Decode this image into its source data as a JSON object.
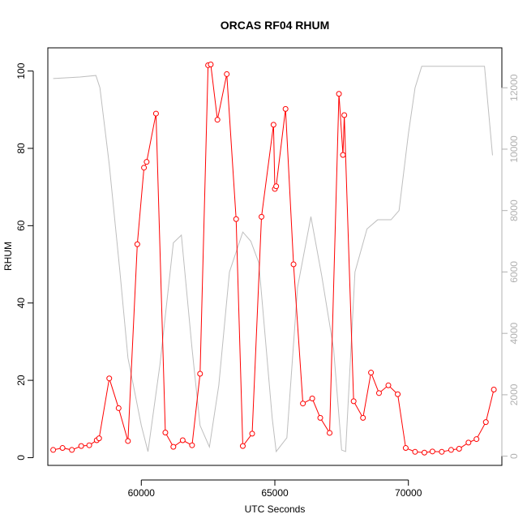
{
  "chart_data": {
    "type": "line",
    "title": "ORCAS RF04 RHUM",
    "xlabel": "UTC Seconds",
    "ylabel": "RHUM",
    "xlim": [
      56500,
      73500
    ],
    "ylim": [
      -2,
      106
    ],
    "y2lim": [
      -300,
      13300
    ],
    "x_ticks": [
      60000,
      65000,
      70000
    ],
    "y_ticks": [
      0,
      20,
      40,
      60,
      80,
      100
    ],
    "y2_ticks": [
      0,
      2000,
      4000,
      6000,
      8000,
      10000,
      12000
    ],
    "colors": {
      "rhum": "#ff0000",
      "secondary": "#bebebe",
      "axis": "#000000",
      "axis_right": "#b0b0b0"
    },
    "series": [
      {
        "axis": "left",
        "style": "line+points",
        "x": [
          56700,
          57050,
          57400,
          57750,
          58050,
          58330,
          58420,
          58800,
          59150,
          59500,
          59850,
          60100,
          60200,
          60550,
          60900,
          61200,
          61550,
          61900,
          62200,
          62500,
          62600,
          62850,
          63200,
          63550,
          63800,
          64150,
          64500,
          64950,
          65000,
          65050,
          65400,
          65700,
          66050,
          66400,
          66700,
          67050,
          67400,
          67550,
          67600,
          67950,
          68300,
          68600,
          68900,
          69250,
          69600,
          69900,
          70250,
          70600,
          70900,
          71250,
          71600,
          71900,
          72250,
          72550,
          72900,
          73200
        ],
        "y": [
          2,
          2.5,
          2,
          3,
          3.2,
          4.5,
          5,
          20.5,
          12.8,
          4.3,
          55.2,
          75,
          76.5,
          89,
          6.5,
          2.8,
          4.5,
          3.2,
          21.7,
          101.5,
          101.7,
          87.4,
          99.2,
          61.7,
          3,
          6.2,
          62.3,
          86.1,
          69.5,
          70.2,
          90.2,
          50,
          14,
          15.3,
          10.3,
          6.4,
          94.1,
          78.3,
          88.6,
          14.6,
          10.3,
          22,
          16.7,
          18.7,
          16.4,
          2.5,
          1.5,
          1.3,
          1.6,
          1.5,
          2,
          2.3,
          3.9,
          4.8,
          9.2,
          17.6
        ]
      },
      {
        "axis": "right",
        "style": "line",
        "x": [
          56700,
          57700,
          58300,
          58450,
          58800,
          59200,
          59500,
          60000,
          60250,
          60700,
          61200,
          61500,
          61900,
          62200,
          62550,
          62900,
          63300,
          63800,
          64100,
          64400,
          64900,
          65050,
          65450,
          65850,
          66350,
          66750,
          67200,
          67500,
          67650,
          68000,
          68450,
          68850,
          69350,
          69650,
          70000,
          70250,
          70500,
          72050,
          72650,
          72850,
          73150
        ],
        "y": [
          12300,
          12350,
          12400,
          12000,
          9500,
          6000,
          3200,
          1000,
          150,
          3000,
          6950,
          7200,
          3500,
          1000,
          300,
          2300,
          6000,
          7300,
          7000,
          6300,
          1250,
          150,
          600,
          5500,
          7800,
          5900,
          3500,
          200,
          150,
          6000,
          7400,
          7700,
          7700,
          8000,
          10500,
          12000,
          12700,
          12700,
          12700,
          12700,
          9800
        ]
      }
    ]
  }
}
